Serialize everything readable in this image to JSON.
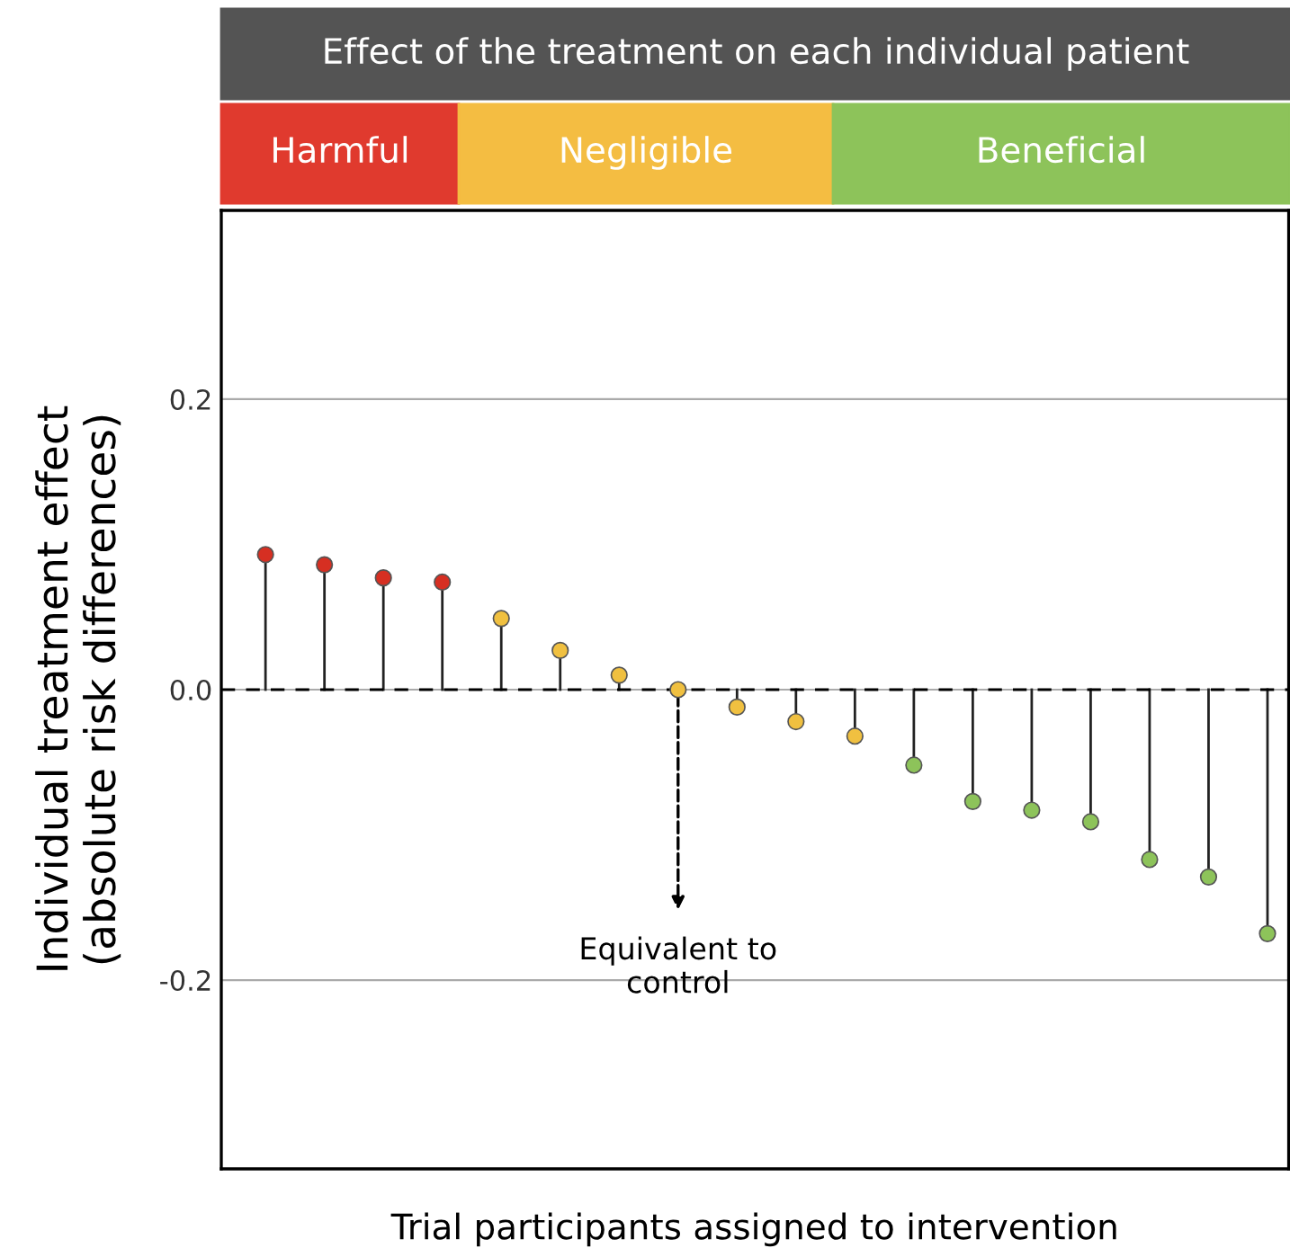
{
  "chart_data": {
    "type": "lollipop",
    "title": "Effect of the treatment on each individual patient",
    "xlabel": "Trial participants assigned to intervention",
    "ylabel": "Individual treatment effect\n(absolute risk differences)",
    "categories": [
      null,
      null,
      null,
      null,
      null,
      null,
      null,
      null,
      null,
      null,
      null,
      null,
      null,
      null,
      null,
      null,
      null,
      null
    ],
    "values": [
      0.093,
      0.086,
      0.077,
      0.074,
      0.049,
      0.027,
      0.01,
      0.0,
      -0.012,
      -0.022,
      -0.032,
      -0.052,
      -0.077,
      -0.083,
      -0.091,
      -0.117,
      -0.129,
      -0.168
    ],
    "colors": [
      "#d62f22",
      "#d62f22",
      "#d62f22",
      "#d62f22",
      "#f0c040",
      "#f0c040",
      "#f0c040",
      "#f0c040",
      "#f0c040",
      "#f0c040",
      "#f0c040",
      "#8dc35a",
      "#8dc35a",
      "#8dc35a",
      "#8dc35a",
      "#8dc35a",
      "#8dc35a",
      "#8dc35a"
    ],
    "ylim": [
      -0.33,
      0.33
    ],
    "yticks": [
      {
        "value": -0.2,
        "label": "-0.2"
      },
      {
        "value": 0,
        "label": "0.0"
      },
      0.2
    ],
    "grid": "y",
    "marker": "circle",
    "ref_lines": [
      {
        "axis": "y",
        "value": 0,
        "line_style": "dashed",
        "color": "#000000"
      }
    ],
    "annotations": [
      "Harmful",
      "Negligible",
      "Beneficial",
      {
        "text": "Equivalent to\ncontrol",
        "y": 0
      }
    ]
  }
}
